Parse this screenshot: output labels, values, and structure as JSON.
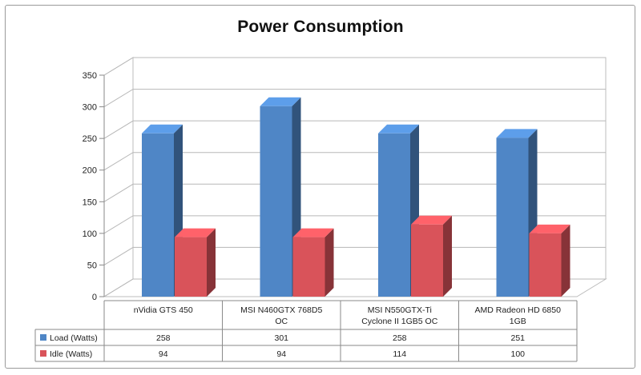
{
  "chart_data": {
    "type": "bar",
    "title": "Power Consumption",
    "categories": [
      [
        "nVidia GTS 450"
      ],
      [
        "MSI N460GTX 768D5",
        "OC"
      ],
      [
        "MSI N550GTX-Ti",
        "Cyclone II 1GB5 OC"
      ],
      [
        "AMD Radeon HD 6850",
        "1GB"
      ]
    ],
    "series": [
      {
        "name": "Load (Watts)",
        "values": [
          258,
          301,
          258,
          251
        ],
        "color": "#4f86c6"
      },
      {
        "name": "Idle (Watts)",
        "values": [
          94,
          94,
          114,
          100
        ],
        "color": "#d9535a"
      }
    ],
    "ylim": [
      0,
      350
    ],
    "yticks": [
      0,
      50,
      100,
      150,
      200,
      250,
      300,
      350
    ],
    "xlabel": "",
    "ylabel": "",
    "grid": true,
    "legend": "data-table"
  }
}
